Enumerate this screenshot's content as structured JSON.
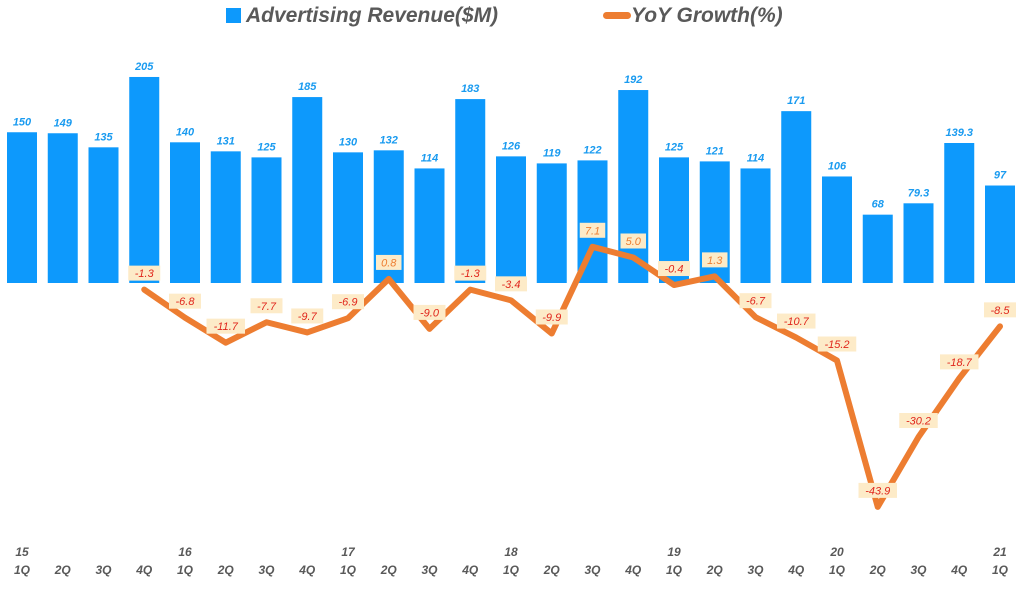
{
  "chart_data": {
    "type": "bar+line",
    "legend": [
      "Advertising Revenue($M)",
      "YoY Growth(%)"
    ],
    "legend_placement": "top",
    "categories": [
      "15 1Q",
      "2Q",
      "3Q",
      "4Q",
      "16 1Q",
      "2Q",
      "3Q",
      "4Q",
      "17 1Q",
      "2Q",
      "3Q",
      "4Q",
      "18 1Q",
      "2Q",
      "3Q",
      "4Q",
      "19 1Q",
      "2Q",
      "3Q",
      "4Q",
      "20 1Q",
      "2Q",
      "3Q",
      "4Q",
      "21 1Q"
    ],
    "tick_years": [
      "15",
      "",
      "",
      "",
      "16",
      "",
      "",
      "",
      "17",
      "",
      "",
      "",
      "18",
      "",
      "",
      "",
      "19",
      "",
      "",
      "",
      "20",
      "",
      "",
      "",
      "21"
    ],
    "tick_quarters": [
      "1Q",
      "2Q",
      "3Q",
      "4Q",
      "1Q",
      "2Q",
      "3Q",
      "4Q",
      "1Q",
      "2Q",
      "3Q",
      "4Q",
      "1Q",
      "2Q",
      "3Q",
      "4Q",
      "1Q",
      "2Q",
      "3Q",
      "4Q",
      "1Q",
      "2Q",
      "3Q",
      "4Q",
      "1Q"
    ],
    "series": [
      {
        "name": "Advertising Revenue($M)",
        "type": "bar",
        "color": "#0d99fc",
        "values": [
          150,
          149,
          135,
          205,
          140,
          131,
          125,
          185,
          130,
          132,
          114,
          183,
          126,
          119,
          122,
          192,
          125,
          121,
          114,
          171,
          106,
          68,
          79.3,
          139.3,
          97
        ],
        "labels": [
          "150",
          "149",
          "135",
          "205",
          "140",
          "131",
          "125",
          "185",
          "130",
          "132",
          "114",
          "183",
          "126",
          "119",
          "122",
          "192",
          "125",
          "121",
          "114",
          "171",
          "106",
          "68",
          "79.3",
          "139.3",
          "97"
        ]
      },
      {
        "name": "YoY Growth(%)",
        "type": "line",
        "color": "#ed7d31",
        "values": [
          null,
          null,
          null,
          -1.3,
          -6.8,
          -11.7,
          -7.7,
          -9.7,
          -6.9,
          0.8,
          -9.0,
          -1.3,
          -3.4,
          -9.9,
          7.1,
          5.0,
          -0.4,
          1.3,
          -6.7,
          -10.7,
          -15.2,
          -43.9,
          -30.2,
          -18.7,
          -8.5
        ],
        "labels": [
          "",
          "",
          "",
          "-1.3",
          "-6.8",
          "-11.7",
          "-7.7",
          "-9.7",
          "-6.9",
          "0.8",
          "-9.0",
          "-1.3",
          "-3.4",
          "-9.9",
          "7.1",
          "5.0",
          "-0.4",
          "1.3",
          "-6.7",
          "-10.7",
          "-15.2",
          "-43.9",
          "-30.2",
          "-18.7",
          "-8.5"
        ]
      }
    ],
    "grid": false
  }
}
